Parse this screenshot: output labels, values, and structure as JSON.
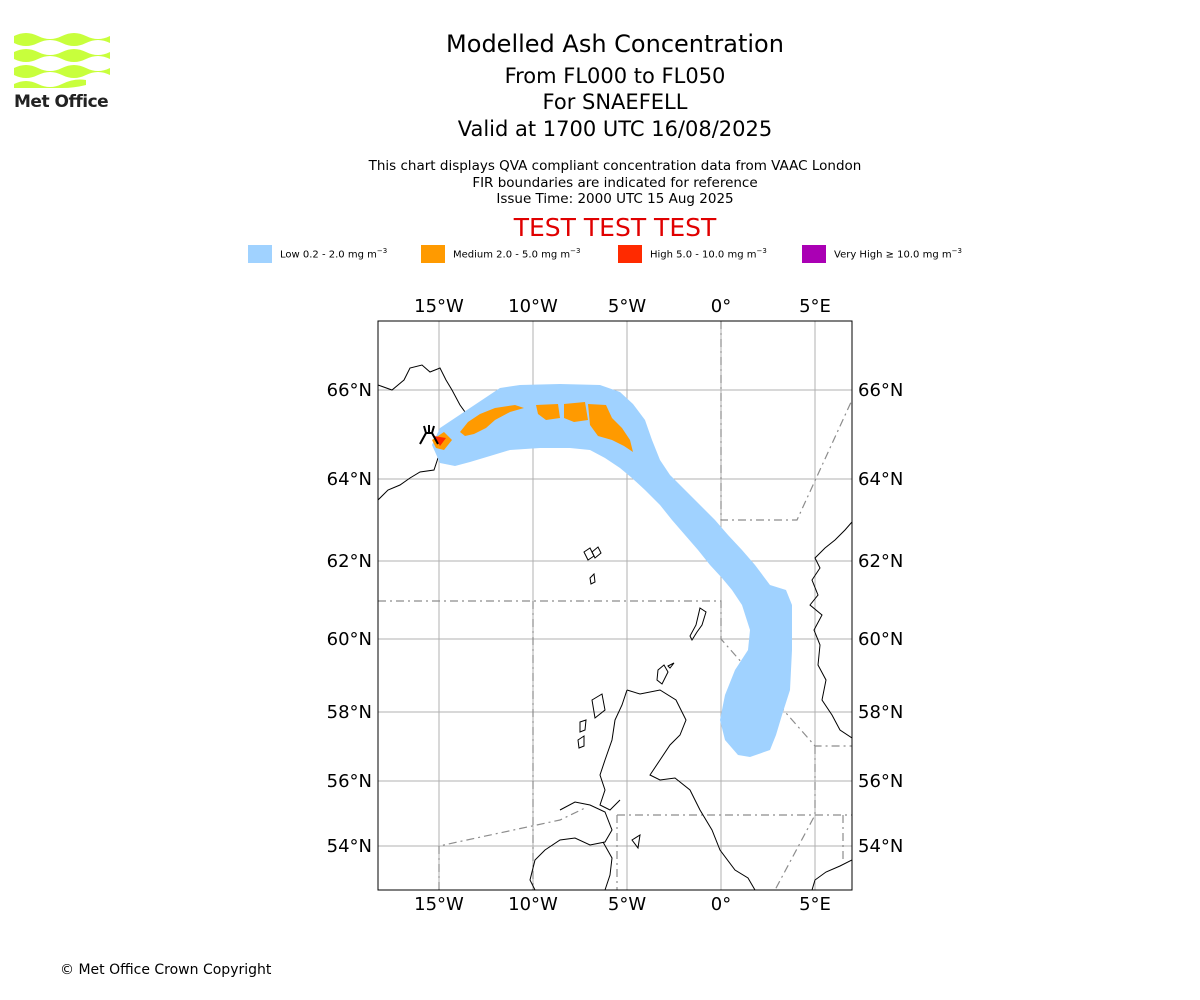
{
  "logo": {
    "text": "Met Office",
    "stripe_color": "#c8ff3c"
  },
  "title": {
    "main": "Modelled Ash Concentration",
    "levels": "From FL000 to FL050",
    "volcano": "For SNAEFELL",
    "valid": "Valid at 1700 UTC 16/08/2025"
  },
  "description": {
    "line1": "This chart displays QVA compliant concentration data from VAAC London",
    "line2": "FIR boundaries are indicated for reference",
    "line3": "Issue Time: 2000 UTC 15 Aug 2025"
  },
  "banner": "TEST TEST TEST",
  "legend": [
    {
      "label": "Low 0.2 - 2.0 mg m",
      "color": "#a0d2ff"
    },
    {
      "label": "Medium 2.0 - 5.0 mg m",
      "color": "#ff9a00"
    },
    {
      "label": "High 5.0 - 10.0 mg m",
      "color": "#ff2a00"
    },
    {
      "label": "Very High ≥ 10.0 mg m",
      "color": "#aa00b4"
    }
  ],
  "legend_unit_exponent": "−3",
  "axes": {
    "lon_ticks": [
      "15°W",
      "10°W",
      "5°W",
      "0°",
      "5°E"
    ],
    "lat_ticks": [
      "66°N",
      "64°N",
      "62°N",
      "60°N",
      "58°N",
      "56°N",
      "54°N"
    ],
    "grid": true
  },
  "copyright": "© Met Office Crown Copyright"
}
